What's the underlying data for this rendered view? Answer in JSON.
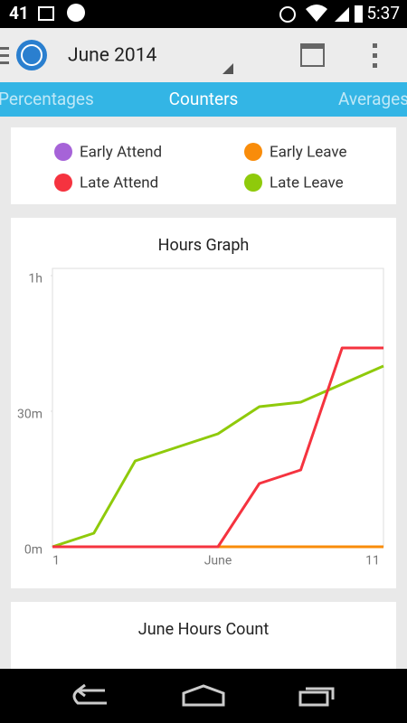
{
  "status_bar": {
    "notifications": "41",
    "time": "5:37"
  },
  "toolbar": {
    "title": "June 2014"
  },
  "tabs": [
    "Percentages",
    "Counters",
    "Averages"
  ],
  "chart_data": {
    "type": "line",
    "title": "Hours Graph",
    "categories": [
      "1",
      null,
      null,
      null,
      "June",
      null,
      null,
      null,
      "11"
    ],
    "series": [
      {
        "name": "Early Attend",
        "color": "#a663d8",
        "values": [
          0,
          0,
          0,
          0,
          0,
          0,
          0,
          0,
          0
        ]
      },
      {
        "name": "Early Leave",
        "color": "#f98c0a",
        "values": [
          0,
          0,
          0,
          0,
          0,
          0,
          0,
          0,
          0
        ]
      },
      {
        "name": "Late Attend",
        "color": "#f5333f",
        "values": [
          0,
          0,
          0,
          0,
          0,
          14,
          17,
          44,
          44
        ]
      },
      {
        "name": "Late Leave",
        "color": "#8fca0b",
        "values": [
          0,
          3,
          19,
          22,
          25,
          31,
          32,
          36,
          40
        ]
      }
    ],
    "ylim": [
      0,
      60
    ],
    "yticks": [
      {
        "value": 0,
        "label": "0m"
      },
      {
        "value": 30,
        "label": "30m"
      },
      {
        "value": 60,
        "label": "1h"
      }
    ]
  },
  "next_card": {
    "title": "June Hours Count"
  }
}
